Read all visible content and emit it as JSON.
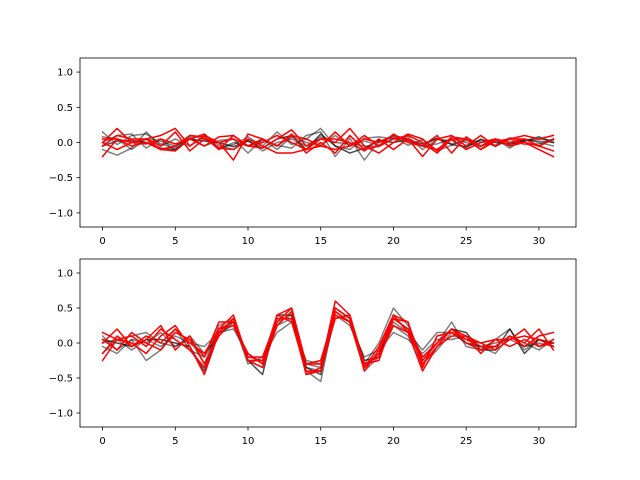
{
  "colors": {
    "black_series": "#000000",
    "red_series": "#ff0000",
    "axes": "#000000",
    "background": "#ffffff"
  },
  "chart_data": [
    {
      "type": "line",
      "xlim": [
        -1.55,
        32.55
      ],
      "ylim": [
        -1.2,
        1.2
      ],
      "xticks": [
        0,
        5,
        10,
        15,
        20,
        25,
        30
      ],
      "yticks": [
        -1.0,
        -0.5,
        0.0,
        0.5,
        1.0
      ],
      "grid": false,
      "series": [
        {
          "color": "black",
          "alpha": 0.5,
          "values": [
            0.15,
            -0.03,
            0.1,
            0.12,
            -0.02,
            -0.08,
            0.1,
            0.05,
            -0.07,
            -0.03,
            0.08,
            -0.05,
            0.15,
            -0.03,
            0.05,
            0.2,
            -0.05,
            -0.1,
            0.06,
            0.08,
            0.05,
            0.04,
            -0.05,
            0.06,
            -0.02,
            0.03,
            0.01,
            -0.04,
            0.07,
            0.02,
            0.05,
            0.03
          ]
        },
        {
          "color": "black",
          "alpha": 0.5,
          "values": [
            -0.1,
            -0.18,
            -0.08,
            0.15,
            -0.05,
            0.05,
            -0.05,
            0.08,
            -0.1,
            0.0,
            -0.05,
            0.03,
            -0.04,
            -0.08,
            0.1,
            0.15,
            -0.2,
            0.06,
            -0.25,
            0.02,
            0.08,
            -0.04,
            0.04,
            -0.12,
            -0.04,
            0.05,
            -0.05,
            0.03,
            -0.04,
            0.04,
            0.02,
            0.0
          ]
        },
        {
          "color": "black",
          "alpha": 0.5,
          "values": [
            0.08,
            0.05,
            -0.1,
            0.05,
            0.02,
            -0.05,
            0.05,
            0.12,
            -0.04,
            -0.1,
            0.03,
            -0.12,
            0.0,
            0.05,
            -0.05,
            0.08,
            0.0,
            -0.02,
            -0.05,
            -0.06,
            0.06,
            0.08,
            -0.1,
            0.04,
            0.03,
            -0.08,
            0.05,
            -0.06,
            0.05,
            -0.03,
            -0.02,
            0.05
          ]
        },
        {
          "color": "black",
          "alpha": 0.7,
          "values": [
            -0.05,
            0.02,
            0.03,
            0.0,
            -0.08,
            -0.1,
            0.05,
            0.02,
            0.0,
            -0.06,
            0.02,
            -0.08,
            0.05,
            0.1,
            -0.1,
            0.12,
            -0.05,
            -0.15,
            -0.08,
            0.03,
            0.0,
            0.04,
            -0.02,
            0.06,
            -0.03,
            -0.06,
            0.04,
            0.0,
            -0.02,
            0.02,
            0.08,
            0.0
          ]
        },
        {
          "color": "black",
          "alpha": 0.5,
          "values": [
            0.0,
            0.1,
            0.12,
            -0.08,
            0.05,
            -0.12,
            0.08,
            -0.05,
            0.03,
            0.05,
            -0.15,
            0.05,
            -0.1,
            0.08,
            0.0,
            -0.04,
            0.1,
            -0.05,
            0.02,
            -0.04,
            0.1,
            0.02,
            -0.05,
            -0.02,
            0.05,
            0.0,
            -0.06,
            0.05,
            -0.08,
            0.05,
            0.0,
            -0.05
          ]
        },
        {
          "color": "red",
          "values": [
            0.0,
            0.2,
            0.0,
            0.05,
            0.1,
            0.2,
            -0.05,
            0.1,
            0.0,
            -0.25,
            0.12,
            0.05,
            -0.05,
            0.1,
            0.05,
            -0.05,
            0.15,
            -0.05,
            0.05,
            0.0,
            0.1,
            0.05,
            -0.2,
            0.05,
            0.1,
            -0.05,
            0.1,
            -0.05,
            0.05,
            0.1,
            0.05,
            0.1
          ]
        },
        {
          "color": "red",
          "values": [
            -0.2,
            0.05,
            0.0,
            0.05,
            -0.05,
            0.15,
            -0.12,
            0.05,
            0.0,
            0.05,
            -0.05,
            -0.08,
            0.05,
            0.18,
            -0.05,
            0.05,
            0.0,
            0.2,
            -0.05,
            -0.15,
            0.0,
            0.12,
            0.05,
            -0.12,
            0.08,
            0.05,
            -0.1,
            0.05,
            -0.05,
            0.0,
            -0.1,
            -0.2
          ]
        },
        {
          "color": "red",
          "values": [
            0.05,
            0.05,
            -0.05,
            0.0,
            -0.1,
            -0.05,
            0.1,
            0.08,
            -0.1,
            0.1,
            -0.05,
            0.0,
            0.1,
            0.0,
            -0.1,
            -0.05,
            -0.1,
            -0.05,
            0.1,
            -0.05,
            0.12,
            0.0,
            -0.05,
            0.1,
            -0.15,
            0.08,
            -0.05,
            0.05,
            0.0,
            0.05,
            -0.05,
            -0.12
          ]
        },
        {
          "color": "red",
          "values": [
            -0.05,
            0.1,
            0.05,
            0.05,
            -0.1,
            -0.12,
            0.05,
            0.12,
            -0.08,
            -0.1,
            0.05,
            -0.05,
            -0.15,
            -0.15,
            -0.1,
            0.05,
            0.05,
            0.0,
            -0.12,
            0.05,
            -0.1,
            0.05,
            -0.05,
            -0.1,
            0.05,
            0.05,
            -0.1,
            0.02,
            0.05,
            0.05,
            -0.05,
            0.05
          ]
        },
        {
          "color": "red",
          "values": [
            0.0,
            -0.1,
            0.0,
            -0.02,
            0.05,
            -0.02,
            0.05,
            -0.05,
            0.08,
            0.1,
            -0.05,
            0.05,
            -0.05,
            0.12,
            -0.15,
            0.0,
            -0.15,
            0.1,
            -0.1,
            -0.05,
            0.05,
            0.1,
            0.0,
            -0.15,
            0.05,
            -0.1,
            0.0,
            0.05,
            0.0,
            0.0,
            -0.05,
            0.05
          ]
        }
      ]
    },
    {
      "type": "line",
      "xlim": [
        -1.55,
        32.55
      ],
      "ylim": [
        -1.2,
        1.2
      ],
      "xticks": [
        0,
        5,
        10,
        15,
        20,
        25,
        30
      ],
      "yticks": [
        -1.0,
        -0.5,
        0.0,
        0.5,
        1.0
      ],
      "grid": false,
      "series": [
        {
          "color": "black",
          "alpha": 0.5,
          "values": [
            -0.15,
            0.05,
            0.1,
            0.15,
            0.0,
            -0.05,
            0.05,
            -0.3,
            0.25,
            0.35,
            -0.25,
            -0.35,
            0.3,
            0.4,
            -0.4,
            -0.55,
            0.45,
            0.3,
            -0.3,
            0.0,
            0.5,
            0.25,
            -0.2,
            0.0,
            0.3,
            -0.05,
            -0.1,
            0.05,
            0.2,
            -0.1,
            0.05,
            0.0
          ]
        },
        {
          "color": "black",
          "alpha": 0.5,
          "values": [
            0.1,
            -0.1,
            0.05,
            -0.25,
            -0.1,
            0.2,
            -0.1,
            -0.2,
            0.15,
            0.25,
            -0.2,
            -0.25,
            0.25,
            0.35,
            -0.35,
            -0.4,
            0.35,
            0.4,
            -0.35,
            -0.15,
            0.25,
            0.1,
            -0.3,
            -0.1,
            0.15,
            0.0,
            -0.05,
            0.0,
            0.05,
            -0.05,
            0.0,
            -0.05
          ]
        },
        {
          "color": "black",
          "alpha": 0.5,
          "values": [
            -0.05,
            -0.15,
            0.05,
            0.0,
            0.15,
            -0.05,
            0.1,
            -0.15,
            0.1,
            0.3,
            -0.3,
            -0.2,
            0.15,
            0.3,
            -0.25,
            -0.3,
            0.4,
            0.25,
            -0.2,
            -0.1,
            0.15,
            0.05,
            -0.15,
            0.05,
            0.05,
            0.1,
            -0.05,
            -0.15,
            0.1,
            -0.05,
            0.05,
            0.0
          ]
        },
        {
          "color": "black",
          "alpha": 0.7,
          "values": [
            0.05,
            0.0,
            -0.05,
            0.05,
            0.05,
            0.0,
            -0.05,
            -0.4,
            0.2,
            0.3,
            -0.25,
            -0.45,
            0.4,
            0.4,
            -0.35,
            -0.45,
            0.5,
            0.35,
            -0.25,
            -0.2,
            0.35,
            0.2,
            -0.25,
            0.0,
            0.2,
            0.15,
            -0.1,
            -0.1,
            0.2,
            -0.15,
            0.05,
            -0.05
          ]
        },
        {
          "color": "black",
          "alpha": 0.5,
          "values": [
            0.0,
            0.05,
            -0.1,
            0.05,
            -0.05,
            0.1,
            0.0,
            -0.05,
            0.15,
            0.2,
            -0.15,
            -0.3,
            0.25,
            0.45,
            -0.3,
            -0.35,
            0.45,
            0.3,
            -0.4,
            -0.2,
            0.3,
            0.15,
            -0.1,
            0.15,
            0.15,
            0.0,
            -0.05,
            -0.05,
            0.1,
            0.0,
            -0.1,
            0.05
          ]
        },
        {
          "color": "red",
          "values": [
            -0.25,
            0.05,
            0.1,
            -0.05,
            0.2,
            0.05,
            -0.1,
            -0.35,
            0.2,
            0.4,
            -0.25,
            -0.25,
            0.3,
            0.5,
            -0.45,
            -0.35,
            0.6,
            0.4,
            -0.4,
            -0.1,
            0.35,
            0.3,
            -0.35,
            0.1,
            0.15,
            0.05,
            -0.05,
            -0.05,
            0.1,
            -0.05,
            0.1,
            0.15
          ]
        },
        {
          "color": "red",
          "values": [
            0.15,
            0.05,
            0.0,
            -0.15,
            0.1,
            0.25,
            -0.05,
            -0.45,
            0.15,
            0.35,
            -0.25,
            -0.25,
            0.4,
            0.3,
            -0.4,
            -0.4,
            0.4,
            0.3,
            -0.35,
            -0.15,
            0.4,
            0.15,
            -0.4,
            -0.05,
            0.1,
            0.1,
            0.0,
            -0.1,
            0.05,
            0.2,
            -0.05,
            0.05
          ]
        },
        {
          "color": "red",
          "values": [
            0.05,
            -0.1,
            0.15,
            0.0,
            -0.1,
            0.15,
            0.05,
            -0.2,
            0.3,
            0.3,
            -0.25,
            -0.35,
            0.25,
            0.45,
            -0.3,
            -0.3,
            0.35,
            0.4,
            -0.3,
            -0.25,
            0.35,
            0.2,
            -0.2,
            0.0,
            0.2,
            0.1,
            -0.15,
            0.05,
            0.05,
            0.1,
            0.05,
            -0.05
          ]
        },
        {
          "color": "red",
          "values": [
            0.0,
            0.2,
            -0.05,
            0.05,
            0.25,
            -0.1,
            0.1,
            -0.3,
            0.1,
            0.35,
            -0.2,
            -0.2,
            0.35,
            0.35,
            -0.45,
            -0.4,
            0.5,
            0.35,
            -0.35,
            -0.05,
            0.4,
            0.3,
            -0.3,
            -0.05,
            0.2,
            0.05,
            0.0,
            0.05,
            -0.05,
            0.05,
            -0.05,
            0.0
          ]
        },
        {
          "color": "red",
          "values": [
            -0.15,
            0.1,
            -0.05,
            0.1,
            0.0,
            0.2,
            0.0,
            -0.15,
            0.2,
            0.25,
            -0.15,
            -0.3,
            0.4,
            0.5,
            -0.3,
            -0.25,
            0.45,
            0.3,
            -0.3,
            -0.2,
            0.25,
            0.15,
            -0.25,
            0.0,
            0.2,
            0.0,
            -0.1,
            -0.05,
            0.1,
            0.0,
            0.2,
            -0.1
          ]
        }
      ]
    }
  ]
}
